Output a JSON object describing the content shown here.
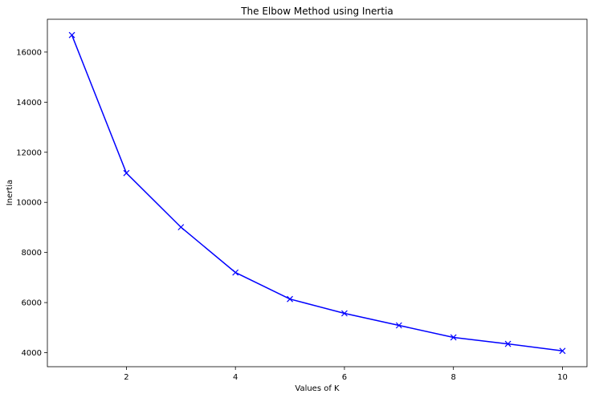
{
  "chart_data": {
    "type": "line",
    "title": "The Elbow Method using Inertia",
    "xlabel": "Values of K",
    "ylabel": "Inertia",
    "x": [
      1,
      2,
      3,
      4,
      5,
      6,
      7,
      8,
      9,
      10
    ],
    "series": [
      {
        "values": [
          16680,
          11170,
          9010,
          7200,
          6140,
          5570,
          5090,
          4610,
          4350,
          4070
        ],
        "color": "#0000ff",
        "marker": "x"
      }
    ],
    "xlim": [
      0.55,
      10.45
    ],
    "ylim": [
      3440,
      17310
    ],
    "xticks": [
      2,
      4,
      6,
      8,
      10
    ],
    "yticks": [
      4000,
      6000,
      8000,
      10000,
      12000,
      14000,
      16000
    ],
    "xtick_labels": [
      "2",
      "4",
      "6",
      "8",
      "10"
    ],
    "ytick_labels": [
      "4000",
      "6000",
      "8000",
      "10000",
      "12000",
      "14000",
      "16000"
    ],
    "grid": false
  }
}
